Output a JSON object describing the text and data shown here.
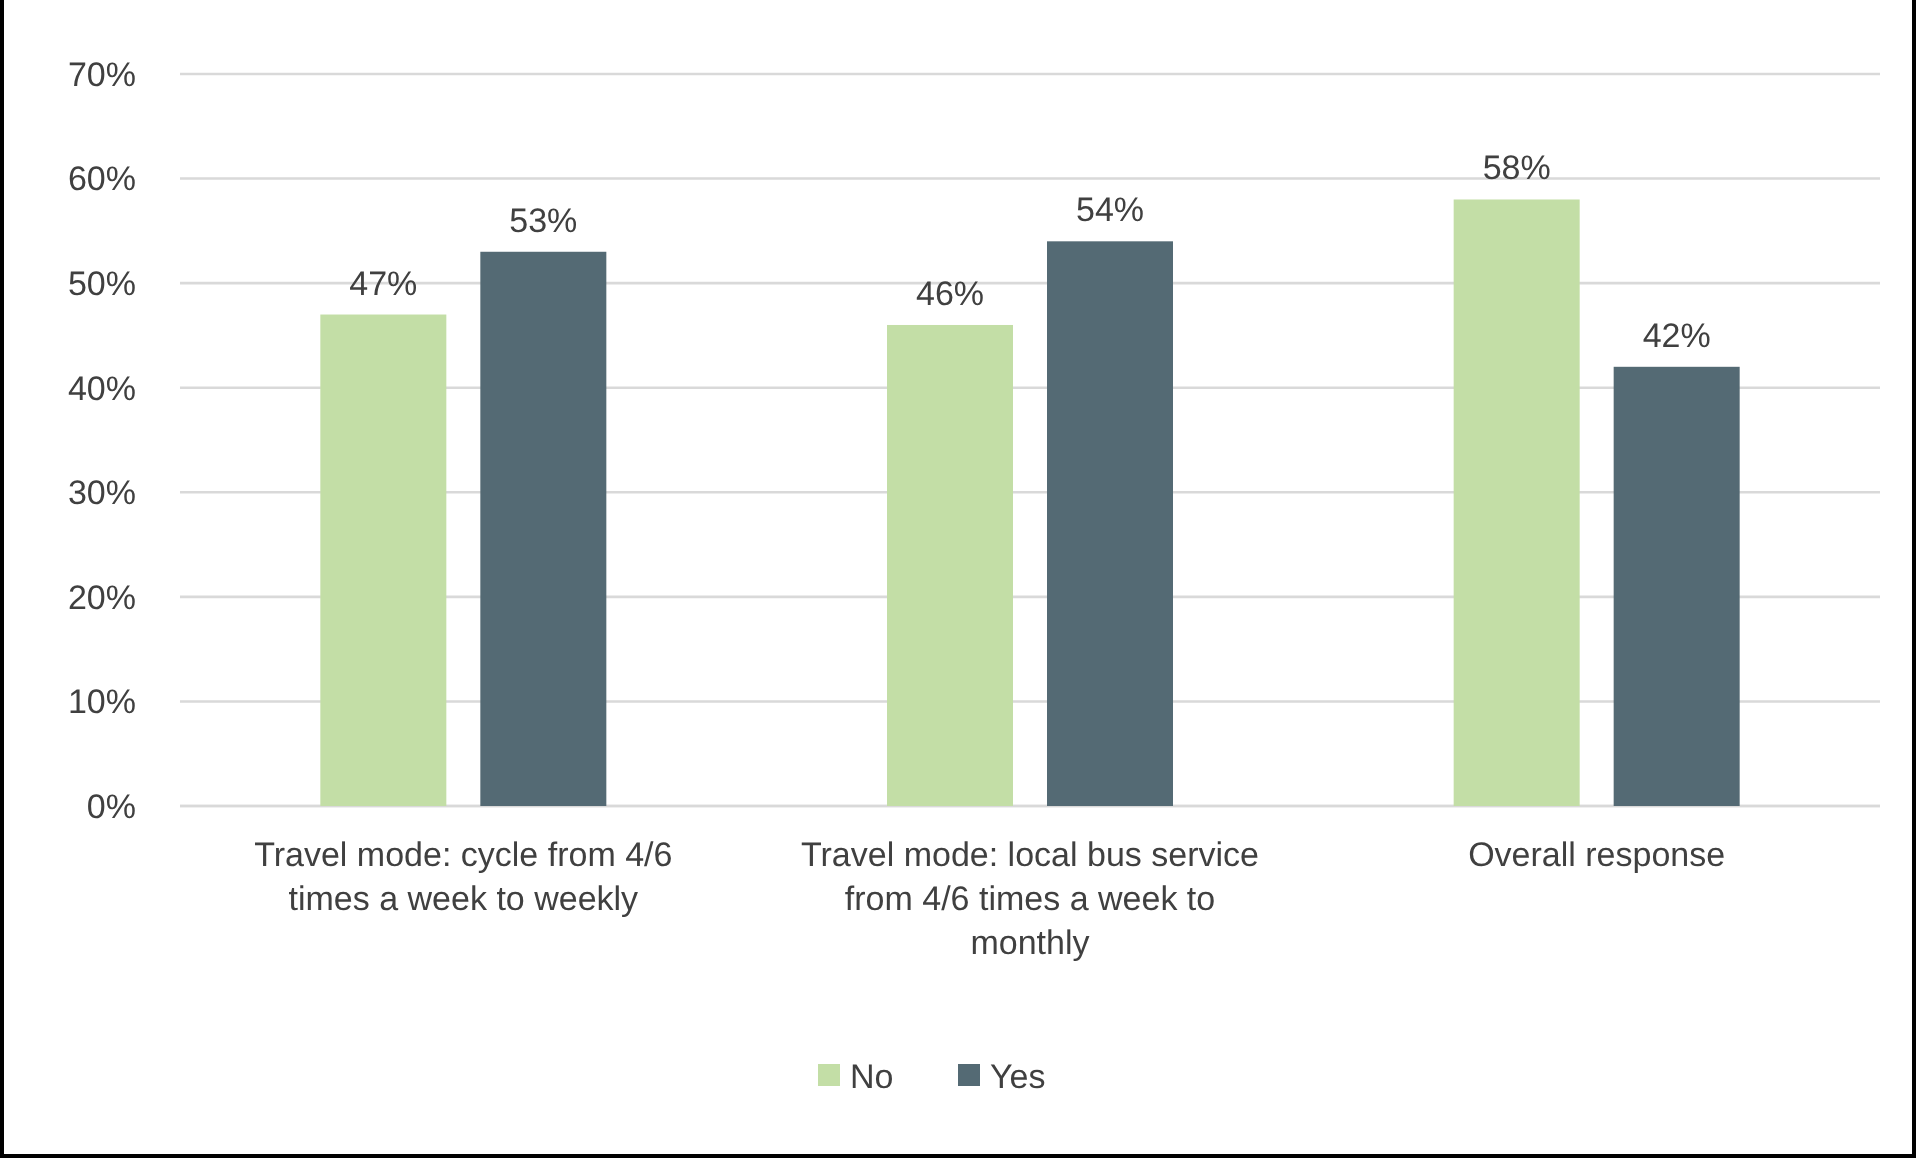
{
  "chart_data": {
    "type": "bar",
    "categories": [
      "Travel mode: cycle from 4/6 times a week to weekly",
      "Travel mode: local bus service from 4/6 times a week to monthly",
      "Overall response"
    ],
    "series": [
      {
        "name": "No",
        "color": "#c3dea6",
        "values": [
          0.47,
          0.46,
          0.58
        ],
        "value_labels": [
          "47%",
          "46%",
          "58%"
        ]
      },
      {
        "name": "Yes",
        "color": "#546a74",
        "values": [
          0.53,
          0.54,
          0.42
        ],
        "value_labels": [
          "53%",
          "54%",
          "42%"
        ]
      }
    ],
    "ylim": [
      0,
      0.7
    ],
    "yticks": [
      {
        "value": 0,
        "label": "0%"
      },
      {
        "value": 0.1,
        "label": "10%"
      },
      {
        "value": 0.2,
        "label": "20%"
      },
      {
        "value": 0.3,
        "label": "30%"
      },
      {
        "value": 0.4,
        "label": "40%"
      },
      {
        "value": 0.5,
        "label": "50%"
      },
      {
        "value": 0.6,
        "label": "60%"
      },
      {
        "value": 0.7,
        "label": "70%"
      }
    ],
    "grid": "y",
    "legend": "bottom"
  }
}
